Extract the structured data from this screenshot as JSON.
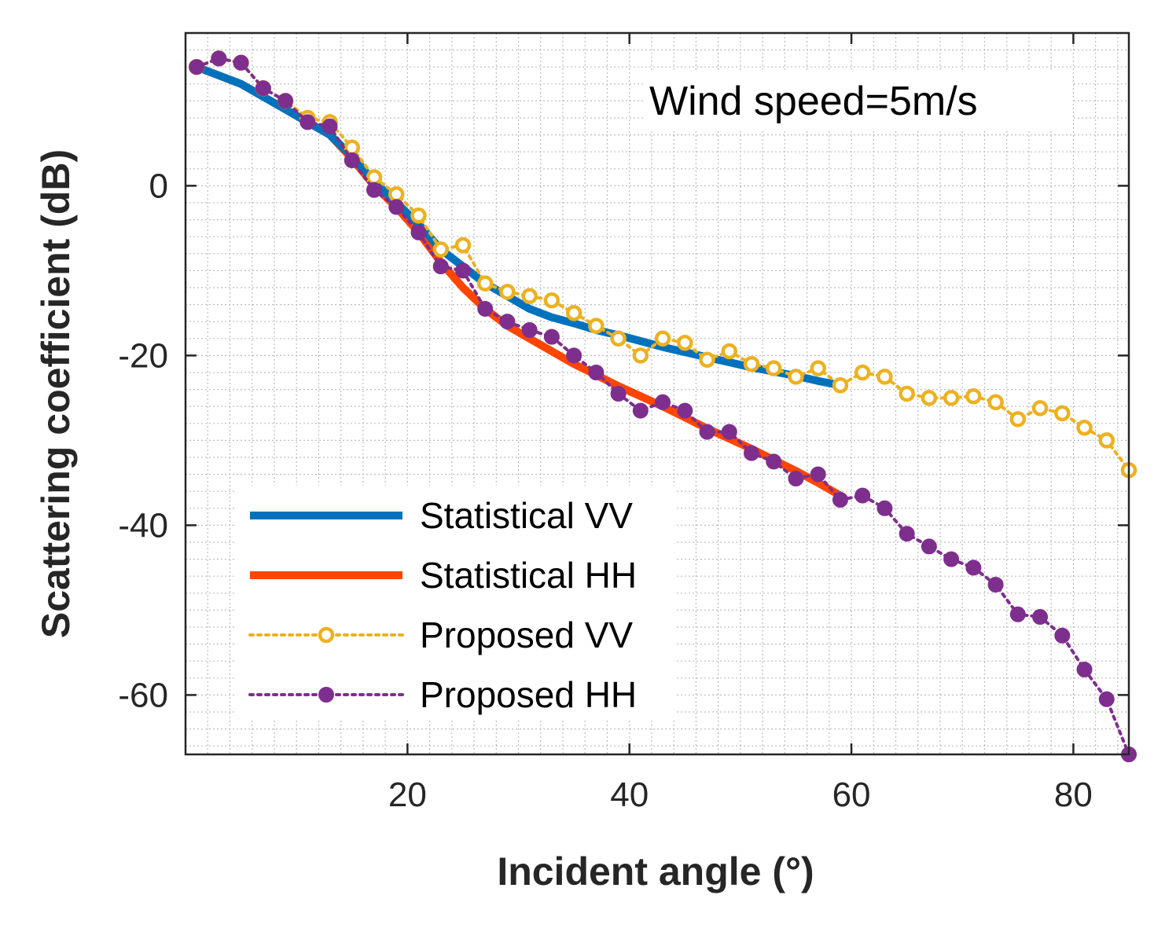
{
  "chart_data": {
    "type": "line",
    "annotation": "Wind speed=5m/s",
    "xlabel": "Incident angle (°)",
    "ylabel": "Scattering coefficient (dB)",
    "xlim": [
      0,
      85
    ],
    "ylim": [
      -67,
      18
    ],
    "xticks": [
      20,
      40,
      60,
      80
    ],
    "xtick_labels": [
      "20",
      "40",
      "60",
      "80"
    ],
    "yticks": [
      0,
      -20,
      -40,
      -60
    ],
    "ytick_labels": [
      "0",
      "-20",
      "-40",
      "-60"
    ],
    "grid": "minor dotted",
    "legend_position": "lower-left",
    "series": [
      {
        "name": "Statistical VV",
        "style": "solid",
        "color": "#0072BD",
        "x": [
          1,
          3,
          5,
          7,
          9,
          11,
          13,
          15,
          17,
          19,
          21,
          23,
          25,
          27,
          29,
          31,
          33,
          35,
          37,
          39,
          41,
          43,
          45,
          47,
          49,
          51,
          53,
          55,
          57,
          59
        ],
        "y": [
          14,
          13,
          12,
          10.5,
          9,
          7.5,
          6,
          3.5,
          0.5,
          -2,
          -4.5,
          -7.5,
          -9.5,
          -11.5,
          -13,
          -14.5,
          -15.5,
          -16.2,
          -17,
          -17.6,
          -18.3,
          -19,
          -19.6,
          -20.2,
          -20.8,
          -21.4,
          -21.9,
          -22.4,
          -23,
          -23.5
        ]
      },
      {
        "name": "Statistical HH",
        "style": "solid",
        "color": "#FF4500",
        "x": [
          1,
          3,
          5,
          7,
          9,
          11,
          13,
          15,
          17,
          19,
          21,
          23,
          25,
          27,
          29,
          31,
          33,
          35,
          37,
          39,
          41,
          43,
          45,
          47,
          49,
          51,
          53,
          55,
          57,
          59
        ],
        "y": [
          14,
          13,
          12,
          10.5,
          9,
          7.5,
          6,
          3.2,
          0,
          -2.5,
          -5.5,
          -9,
          -12,
          -14.5,
          -16.5,
          -18,
          -19.5,
          -21,
          -22.3,
          -23.6,
          -24.8,
          -26,
          -27.3,
          -28.6,
          -29.8,
          -31,
          -32.3,
          -33.6,
          -35,
          -36.5
        ]
      },
      {
        "name": "Proposed VV",
        "style": "dotted-open-circle",
        "color": "#EDB120",
        "x": [
          1,
          3,
          5,
          7,
          9,
          11,
          13,
          15,
          17,
          19,
          21,
          23,
          25,
          27,
          29,
          31,
          33,
          35,
          37,
          39,
          41,
          43,
          45,
          47,
          49,
          51,
          53,
          55,
          57,
          59,
          61,
          63,
          65,
          67,
          69,
          71,
          73,
          75,
          77,
          79,
          81,
          83,
          85
        ],
        "y": [
          14,
          15,
          14.5,
          11.5,
          10,
          8,
          7.5,
          4.5,
          1,
          -1,
          -3.5,
          -7.5,
          -7,
          -11.5,
          -12.5,
          -13,
          -13.5,
          -15,
          -16.5,
          -18,
          -20,
          -18,
          -18.5,
          -20.5,
          -19.5,
          -21,
          -21.5,
          -22.5,
          -21.5,
          -23.5,
          -22,
          -22.5,
          -24.5,
          -25,
          -25,
          -24.8,
          -25.5,
          -27.5,
          -26.2,
          -26.8,
          -28.5,
          -30,
          -33.5
        ]
      },
      {
        "name": "Proposed HH",
        "style": "dotted-filled-circle",
        "color": "#7E2F8E",
        "x": [
          1,
          3,
          5,
          7,
          9,
          11,
          13,
          15,
          17,
          19,
          21,
          23,
          25,
          27,
          29,
          31,
          33,
          35,
          37,
          39,
          41,
          43,
          45,
          47,
          49,
          51,
          53,
          55,
          57,
          59,
          61,
          63,
          65,
          67,
          69,
          71,
          73,
          75,
          77,
          79,
          81,
          83,
          85
        ],
        "y": [
          14,
          15,
          14.5,
          11.5,
          10,
          7.5,
          7,
          3,
          -0.5,
          -2.5,
          -5.5,
          -9.5,
          -10,
          -14.5,
          -16,
          -17,
          -17.8,
          -20,
          -22,
          -24.5,
          -26.5,
          -25.5,
          -26.5,
          -29,
          -29,
          -31.5,
          -32.5,
          -34.5,
          -34,
          -37,
          -36.5,
          -38,
          -41,
          -42.5,
          -44,
          -45,
          -47,
          -50.5,
          -50.8,
          -53,
          -57,
          -60.5,
          -67
        ]
      }
    ]
  }
}
